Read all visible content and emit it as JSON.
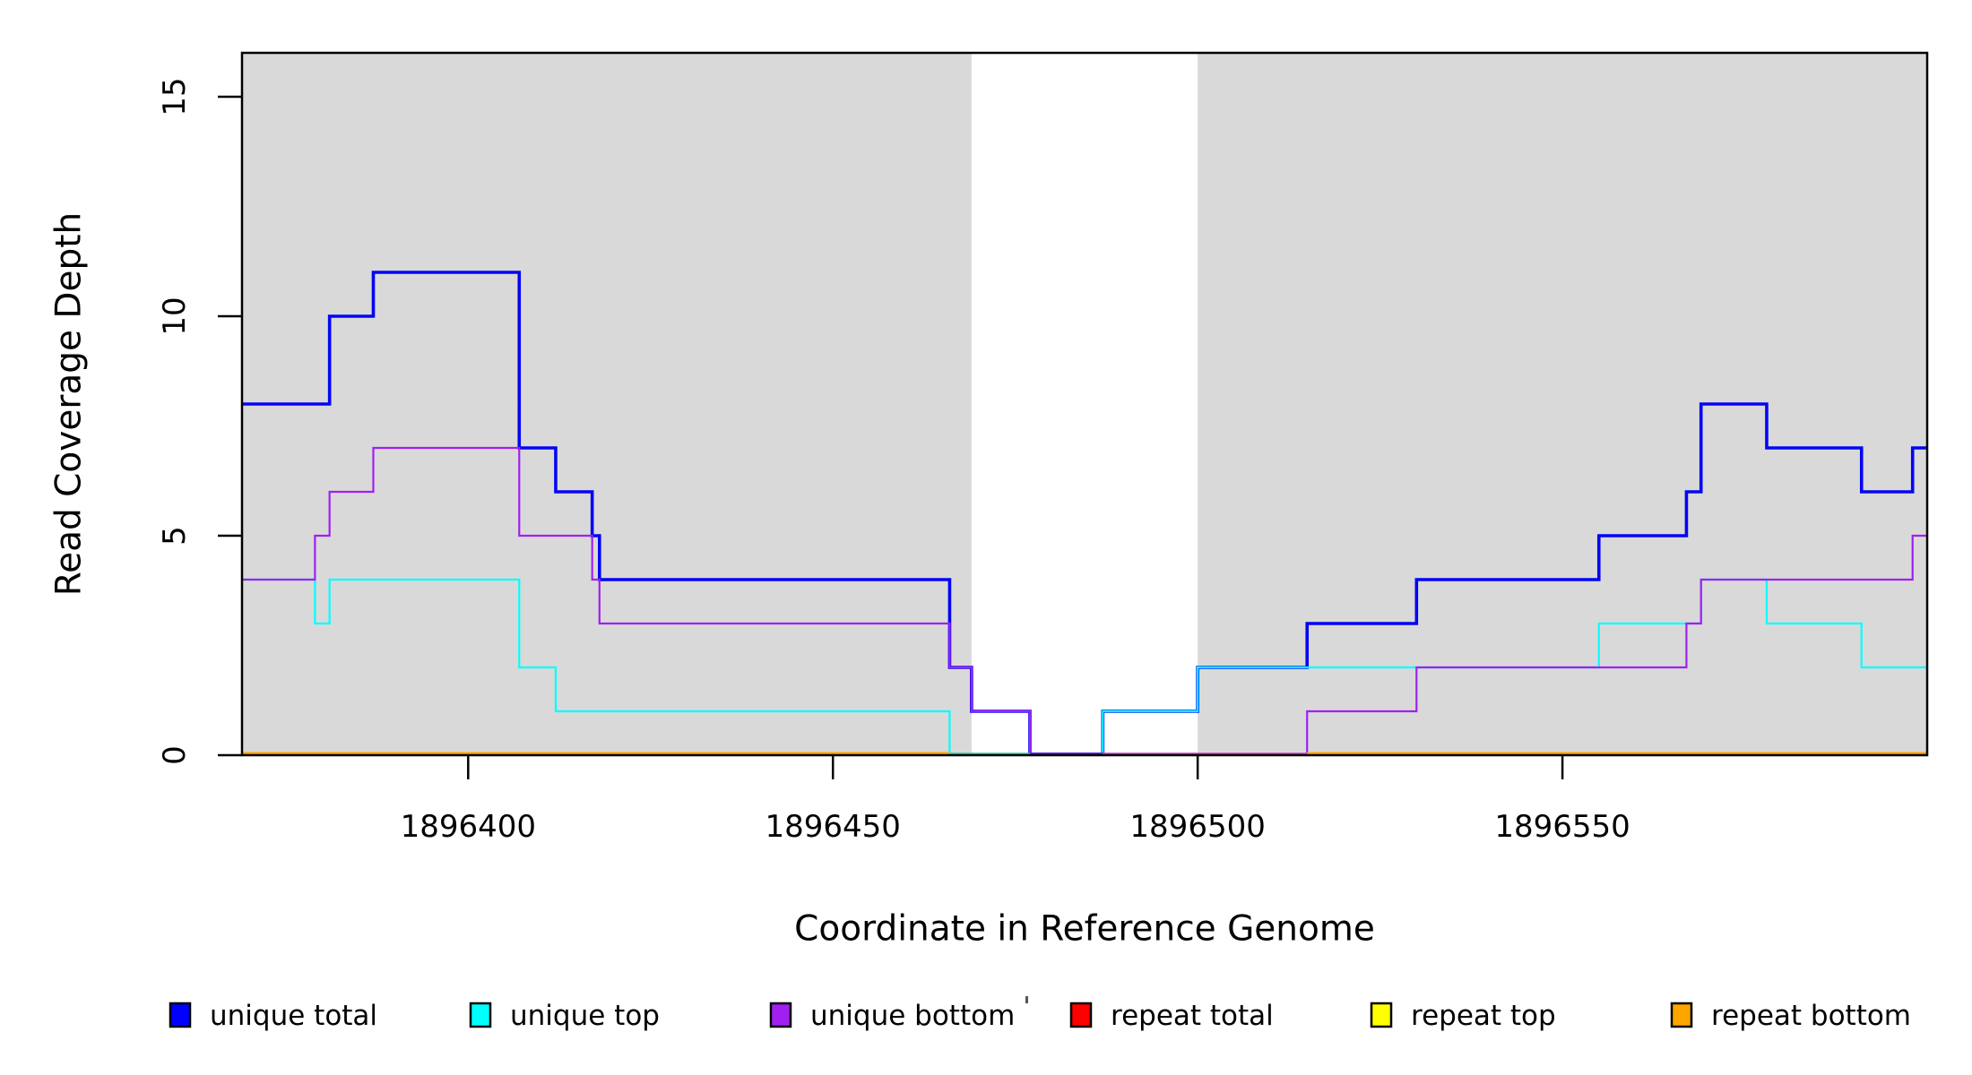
{
  "figure": {
    "background": "#ffffff",
    "plot_background_shaded": "#D9D9D9",
    "border_color": "#000000"
  },
  "chart_data": {
    "type": "line",
    "subtype": "step-coverage",
    "title": "",
    "xlabel": "Coordinate in Reference Genome",
    "ylabel": "Read Coverage Depth",
    "x_domain": [
      1896369,
      1896600
    ],
    "ylim": [
      0,
      16
    ],
    "grid": false,
    "x_ticks": [
      {
        "value": 1896400,
        "label": "1896400"
      },
      {
        "value": 1896450,
        "label": "1896450"
      },
      {
        "value": 1896500,
        "label": "1896500"
      },
      {
        "value": 1896550,
        "label": "1896550"
      }
    ],
    "y_ticks": [
      {
        "value": 0,
        "label": "0"
      },
      {
        "value": 5,
        "label": "5"
      },
      {
        "value": 10,
        "label": "10"
      },
      {
        "value": 15,
        "label": "15"
      }
    ],
    "shaded_regions": [
      {
        "from": 1896369,
        "to": 1896469,
        "color": "#D9D9D9"
      },
      {
        "from": 1896500,
        "to": 1896600,
        "color": "#D9D9D9"
      }
    ],
    "series": [
      {
        "name": "unique total",
        "color": "#0505F5",
        "width": 3.6,
        "draw": true,
        "steps": [
          [
            1896369,
            8
          ],
          [
            1896381,
            10
          ],
          [
            1896387,
            11
          ],
          [
            1896407,
            7
          ],
          [
            1896412,
            6
          ],
          [
            1896417,
            5
          ],
          [
            1896418,
            4
          ],
          [
            1896466,
            2
          ],
          [
            1896469,
            1
          ],
          [
            1896477,
            0
          ],
          [
            1896487,
            1
          ],
          [
            1896500,
            2
          ],
          [
            1896515,
            3
          ],
          [
            1896530,
            4
          ],
          [
            1896555,
            5
          ],
          [
            1896567,
            6
          ],
          [
            1896569,
            8
          ],
          [
            1896578,
            7
          ],
          [
            1896591,
            6
          ],
          [
            1896598,
            7
          ]
        ]
      },
      {
        "name": "unique top",
        "color": "#00FFFF",
        "width": 2.2,
        "draw": true,
        "steps": [
          [
            1896369,
            4
          ],
          [
            1896379,
            3
          ],
          [
            1896381,
            4
          ],
          [
            1896407,
            2
          ],
          [
            1896412,
            1
          ],
          [
            1896466,
            0
          ],
          [
            1896487,
            1
          ],
          [
            1896500,
            2
          ],
          [
            1896555,
            3
          ],
          [
            1896569,
            4
          ],
          [
            1896578,
            3
          ],
          [
            1896591,
            2
          ]
        ]
      },
      {
        "name": "unique bottom",
        "color": "#A020F0",
        "width": 2.2,
        "draw": true,
        "steps": [
          [
            1896369,
            4
          ],
          [
            1896379,
            5
          ],
          [
            1896381,
            6
          ],
          [
            1896387,
            7
          ],
          [
            1896407,
            5
          ],
          [
            1896417,
            4
          ],
          [
            1896418,
            3
          ],
          [
            1896466,
            2
          ],
          [
            1896469,
            1
          ],
          [
            1896477,
            0
          ],
          [
            1896515,
            1
          ],
          [
            1896530,
            2
          ],
          [
            1896567,
            3
          ],
          [
            1896569,
            4
          ],
          [
            1896598,
            5
          ]
        ]
      },
      {
        "name": "repeat total",
        "color": "#FF0000",
        "width": 2.2,
        "draw": false,
        "steps": [
          [
            1896369,
            0
          ]
        ]
      },
      {
        "name": "repeat top",
        "color": "#FFFF00",
        "width": 2.2,
        "draw": false,
        "steps": [
          [
            1896369,
            0
          ]
        ]
      },
      {
        "name": "repeat bottom",
        "color": "#FFA500",
        "width": 4.0,
        "draw": false,
        "steps": [
          [
            1896369,
            0
          ]
        ]
      }
    ],
    "zero_line_segments": [
      {
        "from": 1896369,
        "to": 1896466,
        "color": "#FFA500",
        "width": 4.0
      },
      {
        "from": 1896466,
        "to": 1896477,
        "color": "#2BCBA4",
        "width": 2.6
      },
      {
        "from": 1896477,
        "to": 1896487,
        "color": "#5B24DC",
        "width": 3.0
      },
      {
        "from": 1896487,
        "to": 1896515,
        "color": "#C93CBE",
        "width": 2.6
      },
      {
        "from": 1896515,
        "to": 1896600,
        "color": "#FFA500",
        "width": 4.0
      }
    ],
    "legend": {
      "position": "bottom",
      "items": [
        {
          "label": "unique total",
          "color": "#0000FF"
        },
        {
          "label": "unique top",
          "color": "#00FFFF"
        },
        {
          "label": "unique bottom",
          "color": "#A020F0"
        },
        {
          "label": "repeat total",
          "color": "#FF0000"
        },
        {
          "label": "repeat top",
          "color": "#FFFF00"
        },
        {
          "label": "repeat bottom",
          "color": "#FFA500"
        }
      ]
    },
    "artifact_mark": {
      "x": 1144,
      "y": 1112
    }
  }
}
